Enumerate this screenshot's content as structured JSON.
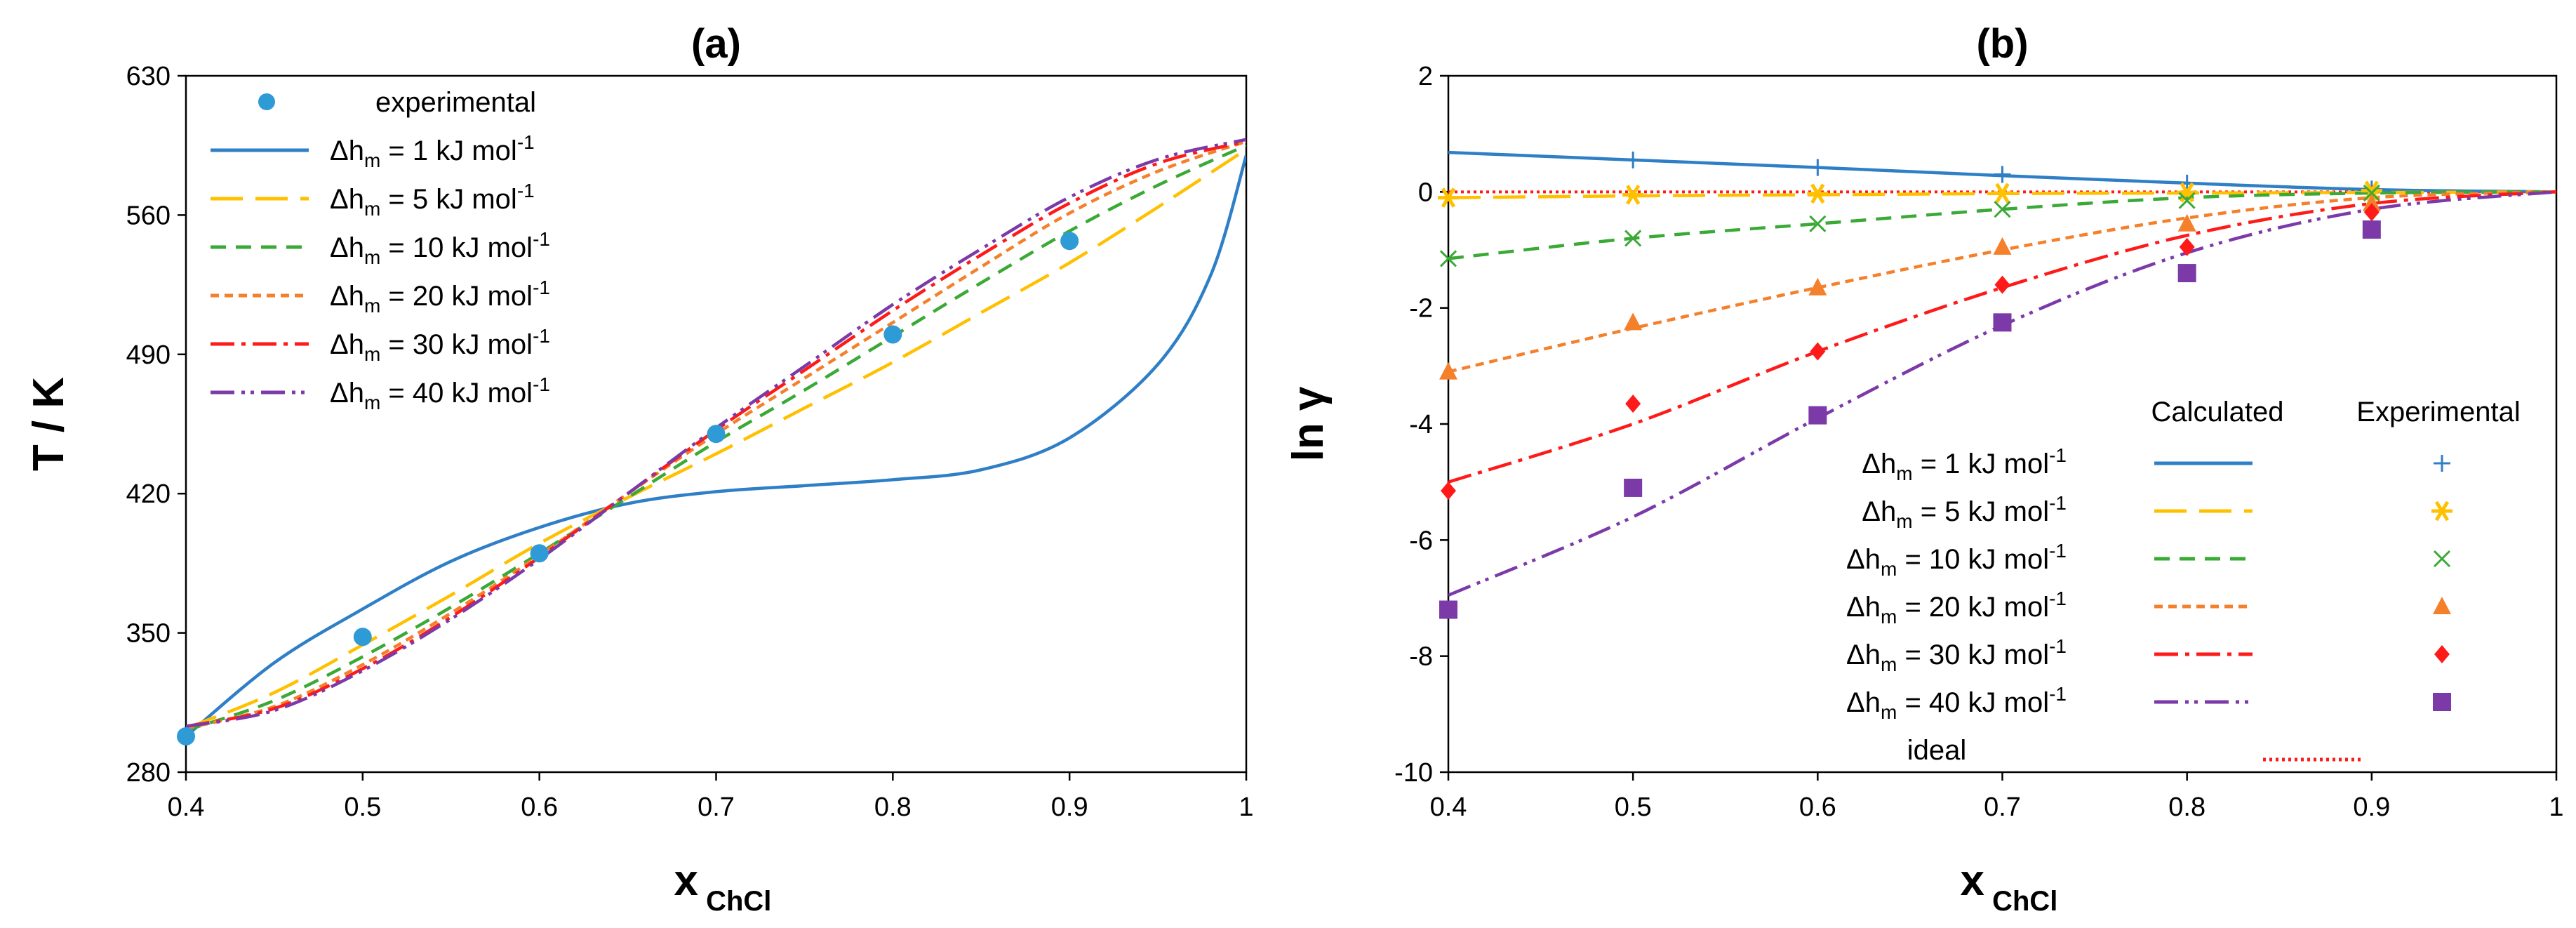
{
  "chart_data": [
    {
      "type": "line",
      "panel": "a",
      "title": "(a)",
      "xlabel": "x",
      "xlabel_sub": "ChCl",
      "ylabel": "T / K",
      "xlim": [
        0.4,
        1.0
      ],
      "ylim": [
        280,
        630
      ],
      "xticks": [
        "0.4",
        "0.5",
        "0.6",
        "0.7",
        "0.8",
        "0.9",
        "1"
      ],
      "yticks": [
        "280",
        "350",
        "420",
        "490",
        "560",
        "630"
      ],
      "legend_position": "top-left",
      "experimental": {
        "name": "experimental",
        "color": "#2e9bd6",
        "x": [
          0.4,
          0.5,
          0.6,
          0.7,
          0.8,
          0.9
        ],
        "y": [
          298,
          348,
          390,
          450,
          500,
          547
        ]
      },
      "series": [
        {
          "name": "Δh",
          "sub": "m",
          "rest": " = 1 kJ mol",
          "sup": "-1",
          "color": "#2f7fc7",
          "dash": "none",
          "x": [
            0.4,
            0.45,
            0.5,
            0.55,
            0.6,
            0.65,
            0.7,
            0.75,
            0.8,
            0.85,
            0.9,
            0.95,
            0.98,
            1.0
          ],
          "y": [
            298,
            335,
            362,
            386,
            403,
            415,
            421,
            424,
            427,
            432,
            448,
            485,
            530,
            590
          ]
        },
        {
          "name": "Δh",
          "sub": "m",
          "rest": " = 5 kJ mol",
          "sup": "-1",
          "color": "#ffc000",
          "dash": "46,18",
          "x": [
            0.4,
            0.45,
            0.5,
            0.55,
            0.6,
            0.65,
            0.7,
            0.75,
            0.8,
            0.85,
            0.9,
            0.95,
            1.0
          ],
          "y": [
            302,
            320,
            344,
            369,
            395,
            418,
            440,
            463,
            486,
            511,
            536,
            564,
            593
          ]
        },
        {
          "name": "Δh",
          "sub": "m",
          "rest": " = 10 kJ mol",
          "sup": "-1",
          "color": "#3aa935",
          "dash": "22,14",
          "x": [
            0.4,
            0.45,
            0.5,
            0.55,
            0.6,
            0.65,
            0.7,
            0.75,
            0.8,
            0.85,
            0.9,
            0.95,
            1.0
          ],
          "y": [
            301,
            316,
            338,
            363,
            390,
            418,
            446,
            472,
            499,
            526,
            552,
            575,
            595
          ]
        },
        {
          "name": "Δh",
          "sub": "m",
          "rest": " = 20 kJ mol",
          "sup": "-1",
          "color": "#f5802b",
          "dash": "12,8",
          "x": [
            0.4,
            0.45,
            0.5,
            0.55,
            0.6,
            0.65,
            0.7,
            0.75,
            0.8,
            0.85,
            0.9,
            0.95,
            1.0
          ],
          "y": [
            302,
            313,
            334,
            360,
            389,
            420,
            450,
            478,
            506,
            534,
            561,
            582,
            597
          ]
        },
        {
          "name": "Δh",
          "sub": "m",
          "rest": " = 30 kJ mol",
          "sup": "-1",
          "color": "#ff1a1a",
          "dash": "34,10,6,10",
          "x": [
            0.4,
            0.45,
            0.5,
            0.55,
            0.6,
            0.65,
            0.7,
            0.75,
            0.8,
            0.85,
            0.9,
            0.95,
            1.0
          ],
          "y": [
            303,
            312,
            332,
            358,
            388,
            420,
            452,
            482,
            512,
            540,
            566,
            586,
            597
          ]
        },
        {
          "name": "Δh",
          "sub": "m",
          "rest": " = 40 kJ mol",
          "sup": "-1",
          "color": "#7b3aa8",
          "dash": "34,10,5,8,5,10",
          "x": [
            0.4,
            0.45,
            0.5,
            0.55,
            0.6,
            0.65,
            0.7,
            0.75,
            0.8,
            0.85,
            0.9,
            0.95,
            1.0
          ],
          "y": [
            303,
            311,
            331,
            357,
            387,
            420,
            453,
            484,
            515,
            543,
            569,
            588,
            598
          ]
        }
      ]
    },
    {
      "type": "line",
      "panel": "b",
      "title": "(b)",
      "xlabel": "x",
      "xlabel_sub": "ChCl",
      "ylabel": "ln γ",
      "xlim": [
        0.4,
        1.0
      ],
      "ylim": [
        -10,
        2
      ],
      "xticks": [
        "0.4",
        "0.5",
        "0.6",
        "0.7",
        "0.8",
        "0.9",
        "1"
      ],
      "yticks": [
        "-10",
        "-8",
        "-6",
        "-4",
        "-2",
        "0",
        "2"
      ],
      "legend_position": "bottom-right",
      "legend_headers": {
        "calculated": "Calculated",
        "experimental": "Experimental"
      },
      "ideal": {
        "name": "ideal",
        "color": "#ff1a1a",
        "dash": "4,5",
        "y": 0
      },
      "series": [
        {
          "name": "Δh",
          "sub": "m",
          "rest": " = 1 kJ mol",
          "sup": "-1",
          "color": "#2f7fc7",
          "dash": "none",
          "marker": "plus",
          "x": [
            0.4,
            0.5,
            0.6,
            0.7,
            0.8,
            0.9,
            1.0
          ],
          "y": [
            0.68,
            0.55,
            0.42,
            0.28,
            0.15,
            0.04,
            0
          ],
          "exp_x": [
            0.5,
            0.6,
            0.7,
            0.8,
            0.9
          ],
          "exp_y": [
            0.55,
            0.42,
            0.3,
            0.15,
            0.05
          ]
        },
        {
          "name": "Δh",
          "sub": "m",
          "rest": " = 5 kJ mol",
          "sup": "-1",
          "color": "#ffc000",
          "dash": "46,18",
          "marker": "asterisk",
          "x": [
            0.4,
            0.5,
            0.6,
            0.7,
            0.8,
            0.9,
            1.0
          ],
          "y": [
            -0.1,
            -0.07,
            -0.05,
            -0.03,
            -0.02,
            -0.01,
            0
          ],
          "exp_x": [
            0.4,
            0.5,
            0.6,
            0.7,
            0.8,
            0.9
          ],
          "exp_y": [
            -0.1,
            -0.05,
            -0.03,
            -0.02,
            -0.01,
            0.02
          ]
        },
        {
          "name": "Δh",
          "sub": "m",
          "rest": " = 10 kJ mol",
          "sup": "-1",
          "color": "#3aa935",
          "dash": "22,14",
          "marker": "x",
          "x": [
            0.4,
            0.5,
            0.6,
            0.7,
            0.8,
            0.9,
            1.0
          ],
          "y": [
            -1.15,
            -0.8,
            -0.55,
            -0.3,
            -0.1,
            -0.02,
            0
          ],
          "exp_x": [
            0.4,
            0.5,
            0.6,
            0.7,
            0.8,
            0.9
          ],
          "exp_y": [
            -1.15,
            -0.8,
            -0.55,
            -0.3,
            -0.15,
            -0.02
          ]
        },
        {
          "name": "Δh",
          "sub": "m",
          "rest": " = 20 kJ mol",
          "sup": "-1",
          "color": "#f5802b",
          "dash": "12,8",
          "marker": "triangle",
          "x": [
            0.4,
            0.5,
            0.6,
            0.7,
            0.8,
            0.9,
            1.0
          ],
          "y": [
            -3.1,
            -2.35,
            -1.65,
            -1.0,
            -0.45,
            -0.1,
            0
          ],
          "exp_x": [
            0.4,
            0.5,
            0.6,
            0.7,
            0.8,
            0.9
          ],
          "exp_y": [
            -3.1,
            -2.25,
            -1.65,
            -0.95,
            -0.55,
            -0.2
          ]
        },
        {
          "name": "Δh",
          "sub": "m",
          "rest": " = 30 kJ mol",
          "sup": "-1",
          "color": "#ff1a1a",
          "dash": "34,10,6,10",
          "marker": "diamond",
          "x": [
            0.4,
            0.5,
            0.6,
            0.7,
            0.8,
            0.9,
            1.0
          ],
          "y": [
            -5.0,
            -4.0,
            -2.75,
            -1.65,
            -0.75,
            -0.2,
            0
          ],
          "exp_x": [
            0.4,
            0.5,
            0.6,
            0.7,
            0.8,
            0.9
          ],
          "exp_y": [
            -5.15,
            -3.65,
            -2.75,
            -1.6,
            -0.95,
            -0.35
          ]
        },
        {
          "name": "Δh",
          "sub": "m",
          "rest": " = 40 kJ mol",
          "sup": "-1",
          "color": "#7b3aa8",
          "dash": "34,10,5,8,5,10",
          "marker": "square",
          "x": [
            0.4,
            0.5,
            0.6,
            0.7,
            0.8,
            0.9,
            1.0
          ],
          "y": [
            -6.95,
            -5.6,
            -3.9,
            -2.3,
            -1.05,
            -0.3,
            0
          ],
          "exp_x": [
            0.4,
            0.5,
            0.6,
            0.7,
            0.8,
            0.9
          ],
          "exp_y": [
            -7.2,
            -5.1,
            -3.85,
            -2.25,
            -1.4,
            -0.65
          ]
        }
      ]
    }
  ]
}
